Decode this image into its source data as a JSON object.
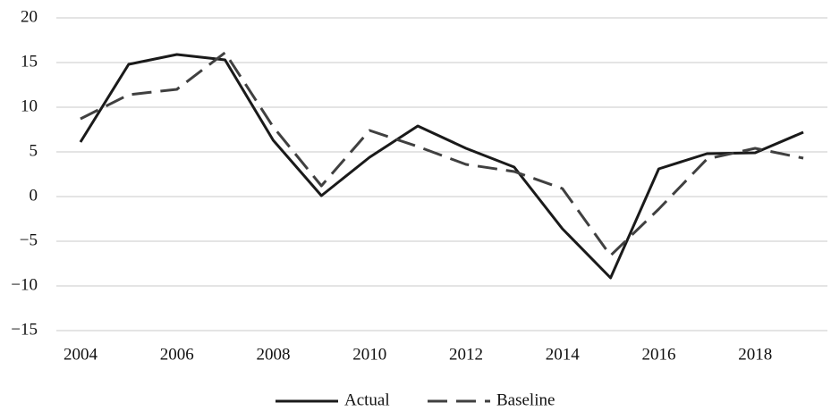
{
  "chart_data": {
    "type": "line",
    "x": [
      2004,
      2005,
      2006,
      2007,
      2008,
      2009,
      2010,
      2011,
      2012,
      2013,
      2014,
      2015,
      2016,
      2017,
      2018,
      2019
    ],
    "series": [
      {
        "name": "Actual",
        "color": "#1a1a1a",
        "style": "solid",
        "values": [
          6.1,
          14.8,
          15.9,
          15.3,
          6.3,
          0.1,
          4.4,
          7.9,
          5.4,
          3.3,
          -3.6,
          -9.1,
          3.1,
          4.8,
          4.9,
          7.2
        ]
      },
      {
        "name": "Baseline",
        "color": "#404040",
        "style": "dashed",
        "values": [
          8.7,
          11.4,
          12.0,
          16.1,
          7.8,
          1.2,
          7.4,
          5.6,
          3.6,
          2.8,
          0.9,
          -6.6,
          -1.4,
          4.2,
          5.4,
          4.3
        ]
      }
    ],
    "xlim": [
      2003.5,
      2019.5
    ],
    "xticks": [
      2004,
      2006,
      2008,
      2010,
      2012,
      2014,
      2016,
      2018
    ],
    "ylim": [
      -15,
      20
    ],
    "yticks": [
      {
        "value": -15,
        "label": "−15"
      },
      {
        "value": -10,
        "label": "−10"
      },
      {
        "value": -5,
        "label": "−5"
      },
      0,
      5,
      10,
      15,
      20
    ],
    "grid": true,
    "legend": "bottom"
  }
}
